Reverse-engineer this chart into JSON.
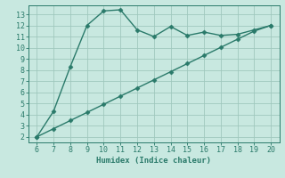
{
  "x": [
    6,
    7,
    8,
    9,
    10,
    11,
    12,
    13,
    14,
    15,
    16,
    17,
    18,
    19,
    20
  ],
  "y_curve": [
    2,
    4.3,
    8.3,
    12,
    13.3,
    13.4,
    11.6,
    11.0,
    11.9,
    11.1,
    11.4,
    11.1,
    11.2,
    11.6,
    12.0
  ],
  "y_line": [
    2,
    2.73,
    3.46,
    4.19,
    4.92,
    5.65,
    6.38,
    7.11,
    7.84,
    8.57,
    9.3,
    10.03,
    10.76,
    11.49,
    12.0
  ],
  "line_color": "#2a7a6a",
  "bg_color": "#c8e8e0",
  "grid_color": "#a0c8be",
  "xlabel": "Humidex (Indice chaleur)",
  "xlim": [
    5.5,
    20.5
  ],
  "ylim": [
    1.5,
    13.8
  ],
  "xticks": [
    6,
    7,
    8,
    9,
    10,
    11,
    12,
    13,
    14,
    15,
    16,
    17,
    18,
    19,
    20
  ],
  "yticks": [
    2,
    3,
    4,
    5,
    6,
    7,
    8,
    9,
    10,
    11,
    12,
    13
  ],
  "marker_size": 2.5,
  "line_width": 1.0,
  "tick_fontsize": 6,
  "xlabel_fontsize": 6.5
}
